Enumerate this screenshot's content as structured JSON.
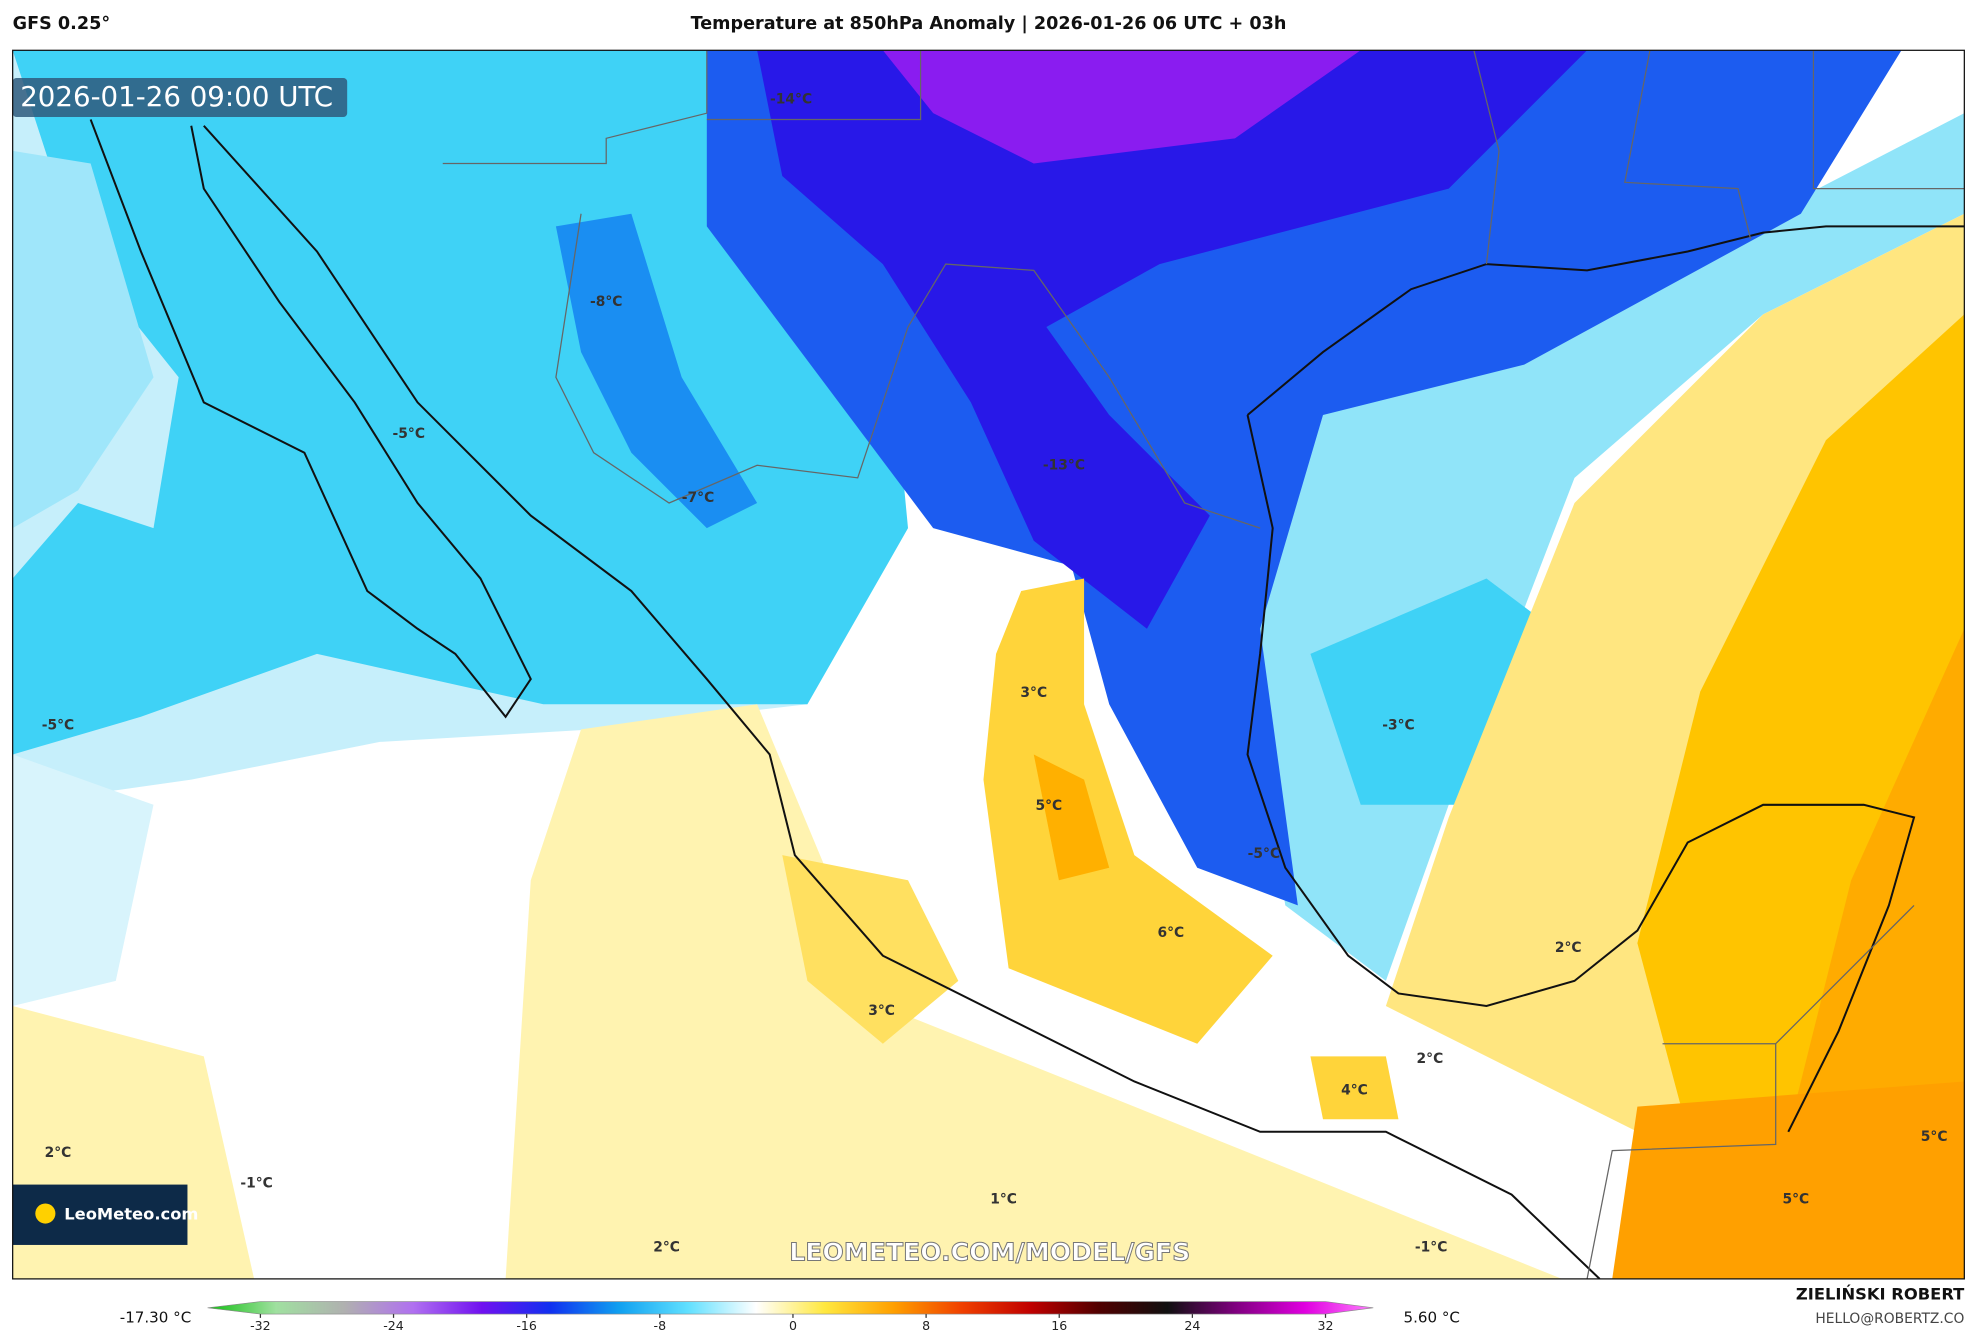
{
  "header": {
    "model": "GFS 0.25°",
    "title": "Temperature at 850hPa Anomaly | 2026-01-26 06 UTC + 03h"
  },
  "map": {
    "timestamp": "2026-01-26 09:00 UTC",
    "labels": [
      "-14°C",
      "-8°C",
      "-5°C",
      "-7°C",
      "-13°C",
      "-5°C",
      "3°C",
      "-3°C",
      "5°C",
      "-5°C",
      "6°C",
      "2°C",
      "3°C",
      "2°C",
      "4°C",
      "5°C",
      "2°C",
      "-1°C",
      "1°C",
      "5°C",
      "2°C",
      "-1°C"
    ],
    "logo": "LeoMeteo.com",
    "watermark": "LEOMETEO.COM/MODEL/GFS"
  },
  "colorbar": {
    "min_label": "-17.30 °C",
    "max_label": "5.60 °C",
    "range": [
      -32,
      32
    ],
    "ticks": [
      -32,
      -24,
      -16,
      -8,
      0,
      8,
      16,
      24,
      32
    ],
    "colors": [
      "#10c010",
      "#a0e0a0",
      "#b0b0b0",
      "#b070f0",
      "#7010f0",
      "#1030f0",
      "#10a0f0",
      "#60e0ff",
      "#ffffff",
      "#ffe840",
      "#ffa000",
      "#f04000",
      "#c00000",
      "#500000",
      "#101010",
      "#800080",
      "#e000e0",
      "#ff80ff"
    ]
  },
  "footer": {
    "author": "ZIELIŃSKI ROBERT",
    "email": "HELLO@ROBERTZ.CO"
  }
}
